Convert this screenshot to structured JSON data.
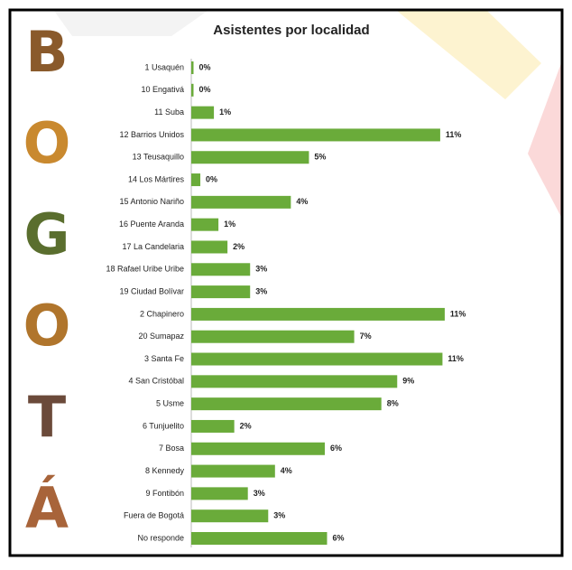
{
  "chart_data": {
    "type": "barh",
    "title": "Asistentes por localidad",
    "side_word": [
      "B",
      "O",
      "G",
      "O",
      "T",
      "Á"
    ],
    "categories": [
      "1 Usaquén",
      "10 Engativá",
      "11 Suba",
      "12 Barrios Unidos",
      "13 Teusaquillo",
      "14 Los Mártires",
      "15 Antonio Nariño",
      "16 Puente Aranda",
      "17 La Candelaria",
      "18 Rafael Uribe Uribe",
      "19 Ciudad Bolívar",
      "2 Chapinero",
      "20 Sumapaz",
      "3 Santa Fe",
      "4 San Cristóbal",
      "5 Usme",
      "6 Tunjuelito",
      "7 Bosa",
      "8 Kennedy",
      "9 Fontibón",
      "Fuera de Bogotá",
      "No responde"
    ],
    "values": [
      0.1,
      0.1,
      1.0,
      11.0,
      5.2,
      0.4,
      4.4,
      1.2,
      1.6,
      2.6,
      2.6,
      11.2,
      7.2,
      11.1,
      9.1,
      8.4,
      1.9,
      5.9,
      3.7,
      2.5,
      3.4,
      6.0
    ],
    "value_labels": [
      "0%",
      "0%",
      "1%",
      "11%",
      "5%",
      "0%",
      "4%",
      "1%",
      "2%",
      "3%",
      "3%",
      "11%",
      "7%",
      "11%",
      "9%",
      "8%",
      "2%",
      "6%",
      "4%",
      "3%",
      "3%",
      "6%"
    ],
    "color": "#6aab3a",
    "xlim": [
      0,
      12
    ]
  }
}
